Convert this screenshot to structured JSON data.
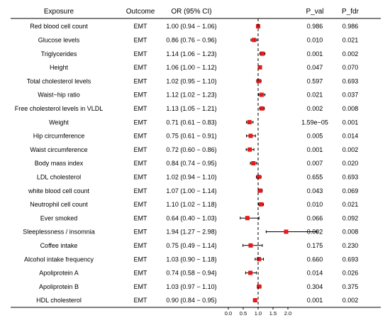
{
  "chart_data": {
    "type": "forest",
    "headers": {
      "exposure": "Exposure",
      "outcome": "Outcome",
      "or_ci": "OR (95% CI)",
      "p_val": "P_val",
      "p_fdr": "P_fdr"
    },
    "rows": [
      {
        "exposure": "Red blood cell count",
        "outcome": "EMT",
        "or_text": "1.00 (0.94 − 1.06)",
        "or": 1.0,
        "lower": 0.94,
        "upper": 1.06,
        "p_val": "0.986",
        "p_fdr": "0.986"
      },
      {
        "exposure": "Glucose levels",
        "outcome": "EMT",
        "or_text": "0.86 (0.76 − 0.96)",
        "or": 0.86,
        "lower": 0.76,
        "upper": 0.96,
        "p_val": "0.010",
        "p_fdr": "0.021"
      },
      {
        "exposure": "Triglycerides",
        "outcome": "EMT",
        "or_text": "1.14 (1.06 − 1.23)",
        "or": 1.14,
        "lower": 1.06,
        "upper": 1.23,
        "p_val": "0.001",
        "p_fdr": "0.002"
      },
      {
        "exposure": "Height",
        "outcome": "EMT",
        "or_text": "1.06 (1.00 − 1.12)",
        "or": 1.06,
        "lower": 1.0,
        "upper": 1.12,
        "p_val": "0.047",
        "p_fdr": "0.070"
      },
      {
        "exposure": "Total cholesterol levels",
        "outcome": "EMT",
        "or_text": "1.02 (0.95 − 1.10)",
        "or": 1.02,
        "lower": 0.95,
        "upper": 1.1,
        "p_val": "0.597",
        "p_fdr": "0.693"
      },
      {
        "exposure": "Waist−hip ratio",
        "outcome": "EMT",
        "or_text": "1.12 (1.02 − 1.23)",
        "or": 1.12,
        "lower": 1.02,
        "upper": 1.23,
        "p_val": "0.021",
        "p_fdr": "0.037"
      },
      {
        "exposure": "Free cholesterol levels in VLDL",
        "outcome": "EMT",
        "or_text": "1.13 (1.05 − 1.21)",
        "or": 1.13,
        "lower": 1.05,
        "upper": 1.21,
        "p_val": "0.002",
        "p_fdr": "0.008"
      },
      {
        "exposure": "Weight",
        "outcome": "EMT",
        "or_text": "0.71 (0.61 − 0.83)",
        "or": 0.71,
        "lower": 0.61,
        "upper": 0.83,
        "p_val": "1.59e−05",
        "p_fdr": "0.001"
      },
      {
        "exposure": "Hip circumference",
        "outcome": "EMT",
        "or_text": "0.75 (0.61 − 0.91)",
        "or": 0.75,
        "lower": 0.61,
        "upper": 0.91,
        "p_val": "0.005",
        "p_fdr": "0.014"
      },
      {
        "exposure": "Waist circumference",
        "outcome": "EMT",
        "or_text": "0.72 (0.60 − 0.86)",
        "or": 0.72,
        "lower": 0.6,
        "upper": 0.86,
        "p_val": "0.001",
        "p_fdr": "0.002"
      },
      {
        "exposure": "Body mass index",
        "outcome": "EMT",
        "or_text": "0.84 (0.74 − 0.95)",
        "or": 0.84,
        "lower": 0.74,
        "upper": 0.95,
        "p_val": "0.007",
        "p_fdr": "0.020"
      },
      {
        "exposure": "LDL cholesterol",
        "outcome": "EMT",
        "or_text": "1.02 (0.94 − 1.10)",
        "or": 1.02,
        "lower": 0.94,
        "upper": 1.1,
        "p_val": "0.655",
        "p_fdr": "0.693"
      },
      {
        "exposure": "white blood cell count",
        "outcome": "EMT",
        "or_text": "1.07 (1.00 − 1.14)",
        "or": 1.07,
        "lower": 1.0,
        "upper": 1.14,
        "p_val": "0.043",
        "p_fdr": "0.069"
      },
      {
        "exposure": "Neutrophil cell count",
        "outcome": "EMT",
        "or_text": "1.10 (1.02 − 1.18)",
        "or": 1.1,
        "lower": 1.02,
        "upper": 1.18,
        "p_val": "0.010",
        "p_fdr": "0.021"
      },
      {
        "exposure": "Ever smoked",
        "outcome": "EMT",
        "or_text": "0.64 (0.40 − 1.03)",
        "or": 0.64,
        "lower": 0.4,
        "upper": 1.03,
        "p_val": "0.066",
        "p_fdr": "0.092"
      },
      {
        "exposure": "Sleeplessness / insomnia",
        "outcome": "EMT",
        "or_text": "1.94 (1.27 − 2.98)",
        "or": 1.94,
        "lower": 1.27,
        "upper": 2.98,
        "p_val": "0.002",
        "p_fdr": "0.008"
      },
      {
        "exposure": "Coffee intake",
        "outcome": "EMT",
        "or_text": "0.75 (0.49 − 1.14)",
        "or": 0.75,
        "lower": 0.49,
        "upper": 1.14,
        "p_val": "0.175",
        "p_fdr": "0.230"
      },
      {
        "exposure": "Alcohol intake frequency",
        "outcome": "EMT",
        "or_text": "1.03 (0.90 − 1.18)",
        "or": 1.03,
        "lower": 0.9,
        "upper": 1.18,
        "p_val": "0.660",
        "p_fdr": "0.693"
      },
      {
        "exposure": "Apoliprotein A",
        "outcome": "EMT",
        "or_text": "0.74 (0.58 − 0.94)",
        "or": 0.74,
        "lower": 0.58,
        "upper": 0.94,
        "p_val": "0.014",
        "p_fdr": "0.026"
      },
      {
        "exposure": "Apoliprotein B",
        "outcome": "EMT",
        "or_text": "1.03 (0.97 − 1.10)",
        "or": 1.03,
        "lower": 0.97,
        "upper": 1.1,
        "p_val": "0.304",
        "p_fdr": "0.375"
      },
      {
        "exposure": "HDL cholesterol",
        "outcome": "EMT",
        "or_text": "0.90 (0.84 − 0.95)",
        "or": 0.9,
        "lower": 0.84,
        "upper": 0.95,
        "p_val": "0.001",
        "p_fdr": "0.002"
      }
    ],
    "x_ticks": [
      0.0,
      0.5,
      1.0,
      1.5,
      2.0
    ],
    "x_tick_labels": [
      "0.0",
      "0.5",
      "1.0",
      "1.5",
      "2.0"
    ],
    "reference_line": 1.0,
    "xlim": [
      0.0,
      2.0
    ],
    "point_color": "#e41a1c",
    "line_color": "#000000"
  }
}
